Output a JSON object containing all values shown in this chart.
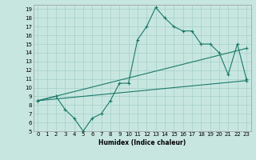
{
  "xlabel": "Humidex (Indice chaleur)",
  "bg_color": "#c8e6e0",
  "grid_color": "#aad4cc",
  "line_color": "#1a7a6a",
  "xlim": [
    -0.5,
    23.5
  ],
  "ylim": [
    5,
    19.5
  ],
  "xticks": [
    0,
    1,
    2,
    3,
    4,
    5,
    6,
    7,
    8,
    9,
    10,
    11,
    12,
    13,
    14,
    15,
    16,
    17,
    18,
    19,
    20,
    21,
    22,
    23
  ],
  "yticks": [
    5,
    6,
    7,
    8,
    9,
    10,
    11,
    12,
    13,
    14,
    15,
    16,
    17,
    18,
    19
  ],
  "line1_x": [
    0,
    2,
    3,
    4,
    5,
    6,
    7,
    8,
    9,
    10,
    11,
    12,
    13,
    14,
    15,
    16,
    17,
    18,
    19,
    20,
    21,
    22,
    23
  ],
  "line1_y": [
    8.5,
    9.0,
    7.5,
    6.5,
    5.0,
    6.5,
    7.0,
    8.5,
    10.5,
    10.5,
    15.5,
    17.0,
    19.2,
    18.0,
    17.0,
    16.5,
    16.5,
    15.0,
    15.0,
    14.0,
    11.5,
    15.0,
    11.0
  ],
  "line2_x": [
    0,
    23
  ],
  "line2_y": [
    8.5,
    10.8
  ],
  "line3_x": [
    0,
    23
  ],
  "line3_y": [
    8.5,
    14.5
  ]
}
